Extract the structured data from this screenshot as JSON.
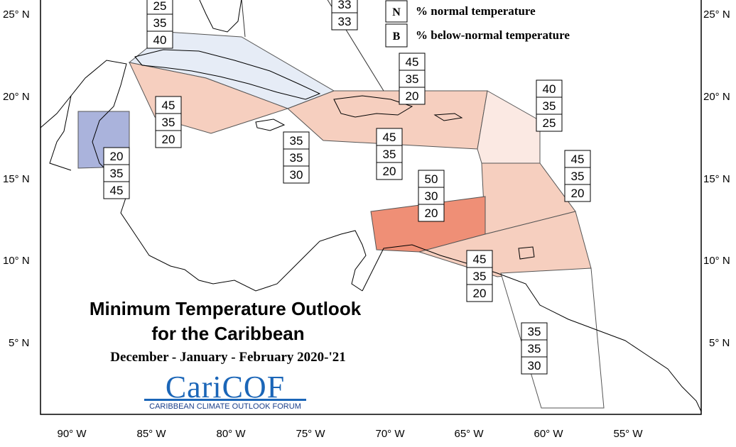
{
  "title_line1": "Minimum Temperature Outlook",
  "title_line2": "for the Caribbean",
  "subtitle": "December - January - February 2020-'21",
  "logo": {
    "name": "CariCOF",
    "tagline": "CARIBBEAN CLIMATE OUTLOOK FORUM"
  },
  "legend": [
    {
      "letter": "N",
      "label": "% normal temperature"
    },
    {
      "letter": "B",
      "label": "% below-normal temperature"
    }
  ],
  "axes": {
    "lon_ticks": [
      "90° W",
      "85° W",
      "80° W",
      "75° W",
      "70° W",
      "65° W",
      "60° W",
      "55° W"
    ],
    "lat_ticks": [
      "25° N",
      "20° N",
      "15° N",
      "10° N",
      "5° N"
    ]
  },
  "colors": {
    "above_45": "#f6cfbf",
    "above_50": "#ef8f76",
    "above_40": "#fbe9e3",
    "below_40": "#e6ecf6",
    "below_45": "#aab3dc",
    "neutral": "#ffffff"
  },
  "regions": [
    {
      "id": "bahamas-cuba-north",
      "probs": [
        "25",
        "35",
        "40"
      ]
    },
    {
      "id": "bahamas-east",
      "probs": [
        "33",
        "33"
      ]
    },
    {
      "id": "cuba-south",
      "probs": [
        "45",
        "35",
        "20"
      ]
    },
    {
      "id": "belize",
      "probs": [
        "20",
        "35",
        "45"
      ]
    },
    {
      "id": "jamaica",
      "probs": [
        "35",
        "35",
        "30"
      ]
    },
    {
      "id": "hispaniola",
      "probs": [
        "45",
        "35",
        "20"
      ]
    },
    {
      "id": "hispaniola-south",
      "probs": [
        "45",
        "35",
        "20"
      ]
    },
    {
      "id": "leeward-islands",
      "probs": [
        "40",
        "35",
        "25"
      ]
    },
    {
      "id": "windward-islands",
      "probs": [
        "45",
        "35",
        "20"
      ]
    },
    {
      "id": "abc-islands",
      "probs": [
        "50",
        "30",
        "20"
      ]
    },
    {
      "id": "trinidad",
      "probs": [
        "45",
        "35",
        "20"
      ]
    },
    {
      "id": "guianas",
      "probs": [
        "35",
        "35",
        "30"
      ]
    }
  ]
}
